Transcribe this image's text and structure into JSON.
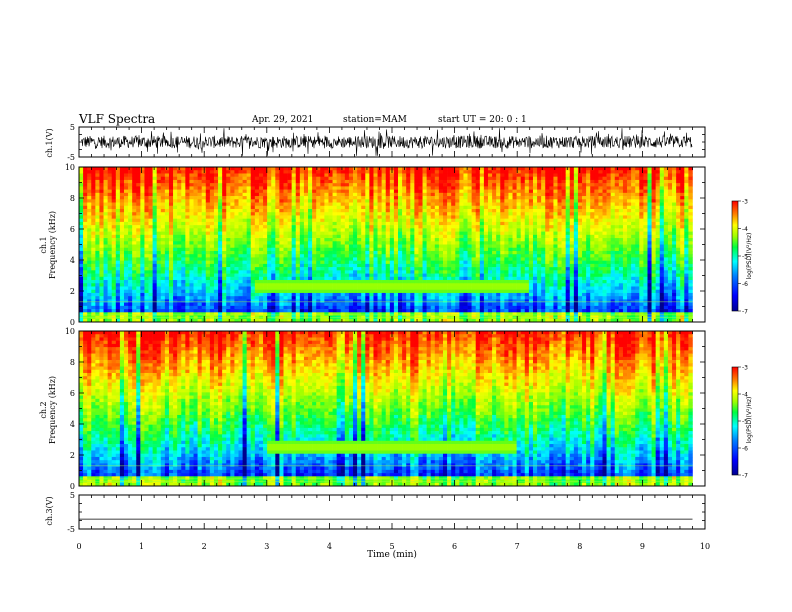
{
  "header": {
    "title": "VLF Spectra",
    "date": "Apr. 29, 2021",
    "station": "station=MAM",
    "start": "start  UT  =   20: 0  : 1"
  },
  "colors": {
    "colormap": [
      "#00008f",
      "#0000ff",
      "#0080ff",
      "#00ffff",
      "#00ff40",
      "#a0ff00",
      "#ffff00",
      "#ff8000",
      "#ff0000"
    ],
    "trace": "#000000",
    "frame": "#000000"
  },
  "chart_data": [
    {
      "type": "line",
      "panel": "ch1-waveform",
      "ylabel": "ch.1(V)",
      "ylim": [
        -5,
        5
      ],
      "yticks": [
        "5",
        "-5"
      ],
      "x": [
        0,
        1,
        2,
        3,
        4,
        5,
        6,
        7,
        8,
        9,
        9.8
      ],
      "description_values_y": [
        -0.5,
        0.3,
        -0.2,
        0.4,
        -0.3,
        0.2,
        -0.4,
        0.3,
        -0.2,
        0.1,
        0.0
      ]
    },
    {
      "type": "heatmap",
      "panel": "ch1-spectrogram",
      "ylabel": "ch.1\nFrequency (kHz)",
      "xlim": [
        0,
        10
      ],
      "ylim": [
        0,
        10
      ],
      "yticks": [
        "0",
        "2",
        "4",
        "6",
        "8",
        "10"
      ],
      "x_extent_max": 9.8,
      "colorbar": {
        "label": "log(PSD)(V²/Hz)",
        "range": [
          -7,
          -3
        ],
        "ticks": [
          "-3",
          "-4",
          "-5",
          "-6",
          "-7"
        ]
      },
      "band_center_kHz": 2.3,
      "band_time_range_min": [
        2.8,
        7.2
      ]
    },
    {
      "type": "heatmap",
      "panel": "ch2-spectrogram",
      "ylabel": "ch.2\nFrequency (kHz)",
      "xlim": [
        0,
        10
      ],
      "ylim": [
        0,
        10
      ],
      "yticks": [
        "0",
        "2",
        "4",
        "6",
        "8",
        "10"
      ],
      "x_extent_max": 9.8,
      "colorbar": {
        "label": "log(PSD)(V²/Hz)",
        "range": [
          -7,
          -3
        ],
        "ticks": [
          "-3",
          "-4",
          "-5",
          "-6",
          "-7"
        ]
      },
      "band_center_kHz": 2.5,
      "band_time_range_min": [
        3.0,
        7.0
      ]
    },
    {
      "type": "line",
      "panel": "ch3-waveform",
      "ylabel": "ch.3(V)",
      "xlabel": "Time  (min)",
      "ylim": [
        -5,
        5
      ],
      "yticks": [
        "5",
        "-5"
      ],
      "xticks": [
        "0",
        "1",
        "2",
        "3",
        "4",
        "5",
        "6",
        "7",
        "8",
        "9",
        "10"
      ],
      "x": [
        0,
        9.8
      ],
      "y": [
        -2.1,
        -2.1
      ]
    }
  ]
}
